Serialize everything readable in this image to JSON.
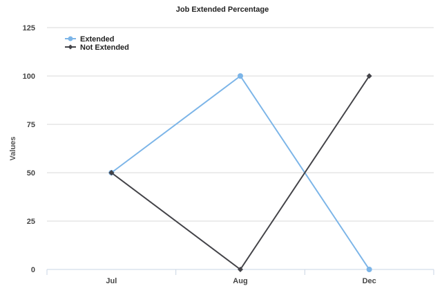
{
  "chart_data": {
    "type": "line",
    "title": "Job Extended Percentage",
    "xlabel": "",
    "ylabel": "Values",
    "categories": [
      "Jul",
      "Aug",
      "Dec"
    ],
    "ylim": [
      0,
      125
    ],
    "yticks": [
      0,
      25,
      50,
      75,
      100,
      125
    ],
    "grid": true,
    "legend_position": "top-left",
    "series": [
      {
        "name": "Extended",
        "values": [
          50,
          100,
          0
        ],
        "color": "#7cb5e8",
        "marker": "circle"
      },
      {
        "name": "Not Extended",
        "values": [
          50,
          0,
          100
        ],
        "color": "#434348",
        "marker": "diamond"
      }
    ]
  }
}
